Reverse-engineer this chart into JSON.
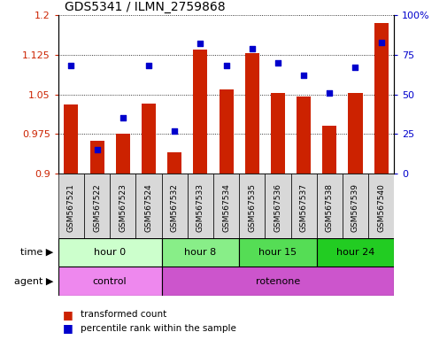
{
  "title": "GDS5341 / ILMN_2759868",
  "samples": [
    "GSM567521",
    "GSM567522",
    "GSM567523",
    "GSM567524",
    "GSM567532",
    "GSM567533",
    "GSM567534",
    "GSM567535",
    "GSM567536",
    "GSM567537",
    "GSM567538",
    "GSM567539",
    "GSM567540"
  ],
  "transformed_count": [
    1.03,
    0.962,
    0.975,
    1.032,
    0.94,
    1.135,
    1.06,
    1.128,
    1.052,
    1.046,
    0.99,
    1.052,
    1.185
  ],
  "percentile_rank": [
    68,
    15,
    35,
    68,
    27,
    82,
    68,
    79,
    70,
    62,
    51,
    67,
    83
  ],
  "ylim_left": [
    0.9,
    1.2
  ],
  "ylim_right": [
    0,
    100
  ],
  "yticks_left": [
    0.9,
    0.975,
    1.05,
    1.125,
    1.2
  ],
  "yticks_right": [
    0,
    25,
    50,
    75,
    100
  ],
  "ytick_labels_left": [
    "0.9",
    "0.975",
    "1.05",
    "1.125",
    "1.2"
  ],
  "ytick_labels_right": [
    "0",
    "25",
    "50",
    "75",
    "100%"
  ],
  "bar_color": "#cc2200",
  "dot_color": "#0000cc",
  "background_color": "#ffffff",
  "plot_bg_color": "#ffffff",
  "grid_color": "#000000",
  "sample_bg_color": "#d8d8d8",
  "time_groups": [
    {
      "label": "hour 0",
      "start": 0,
      "end": 4,
      "color": "#ccffcc"
    },
    {
      "label": "hour 8",
      "start": 4,
      "end": 7,
      "color": "#88ee88"
    },
    {
      "label": "hour 15",
      "start": 7,
      "end": 10,
      "color": "#55dd55"
    },
    {
      "label": "hour 24",
      "start": 10,
      "end": 13,
      "color": "#22cc22"
    }
  ],
  "agent_groups": [
    {
      "label": "control",
      "start": 0,
      "end": 4,
      "color": "#ee88ee"
    },
    {
      "label": "rotenone",
      "start": 4,
      "end": 13,
      "color": "#cc55cc"
    }
  ],
  "legend_bar_label": "transformed count",
  "legend_dot_label": "percentile rank within the sample",
  "xlabel_time": "time",
  "xlabel_agent": "agent"
}
